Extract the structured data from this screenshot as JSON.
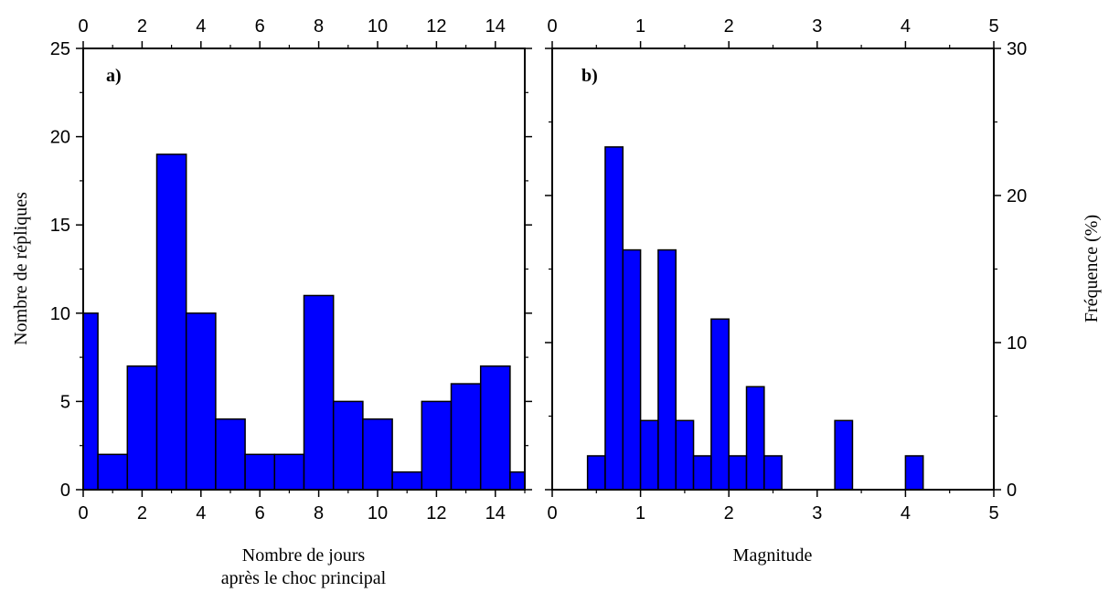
{
  "chart_data": [
    {
      "type": "bar",
      "panel_label": "a)",
      "xlabel": [
        "Nombre de jours",
        "après le choc principal"
      ],
      "ylabel": "Nombre de répliques",
      "xlim": [
        0,
        15
      ],
      "ylim": [
        0,
        25
      ],
      "xticks": [
        "0",
        "2",
        "4",
        "6",
        "8",
        "10",
        "12",
        "14"
      ],
      "yticks": [
        "0",
        "5",
        "10",
        "15",
        "20",
        "25"
      ],
      "bin_width": 1,
      "bins": [
        {
          "x0": 0.0,
          "x1": 0.5,
          "value": 10
        },
        {
          "x0": 0.5,
          "x1": 1.5,
          "value": 2
        },
        {
          "x0": 1.5,
          "x1": 2.5,
          "value": 7
        },
        {
          "x0": 2.5,
          "x1": 3.5,
          "value": 19
        },
        {
          "x0": 3.5,
          "x1": 4.5,
          "value": 10
        },
        {
          "x0": 4.5,
          "x1": 5.5,
          "value": 4
        },
        {
          "x0": 5.5,
          "x1": 6.5,
          "value": 2
        },
        {
          "x0": 6.5,
          "x1": 7.5,
          "value": 2
        },
        {
          "x0": 7.5,
          "x1": 8.5,
          "value": 11
        },
        {
          "x0": 8.5,
          "x1": 9.5,
          "value": 5
        },
        {
          "x0": 9.5,
          "x1": 10.5,
          "value": 4
        },
        {
          "x0": 10.5,
          "x1": 11.5,
          "value": 1
        },
        {
          "x0": 11.5,
          "x1": 12.5,
          "value": 5
        },
        {
          "x0": 12.5,
          "x1": 13.5,
          "value": 6
        },
        {
          "x0": 13.5,
          "x1": 14.5,
          "value": 7
        },
        {
          "x0": 14.5,
          "x1": 15.0,
          "value": 1
        }
      ],
      "bar_color": "#0000ff"
    },
    {
      "type": "bar",
      "panel_label": "b)",
      "xlabel": "Magnitude",
      "ylabel": "Fréquence (%)",
      "ylabel_side": "right",
      "xlim": [
        0,
        5
      ],
      "ylim": [
        0,
        30
      ],
      "xticks": [
        "0",
        "1",
        "2",
        "3",
        "4",
        "5"
      ],
      "yticks": [
        "0",
        "10",
        "20",
        "30"
      ],
      "bins": [
        {
          "x0": 0.4,
          "x1": 0.6,
          "value": 2.3
        },
        {
          "x0": 0.6,
          "x1": 0.8,
          "value": 23.3
        },
        {
          "x0": 0.8,
          "x1": 1.0,
          "value": 16.3
        },
        {
          "x0": 1.0,
          "x1": 1.2,
          "value": 4.7
        },
        {
          "x0": 1.2,
          "x1": 1.4,
          "value": 16.3
        },
        {
          "x0": 1.4,
          "x1": 1.6,
          "value": 4.7
        },
        {
          "x0": 1.6,
          "x1": 1.8,
          "value": 2.3
        },
        {
          "x0": 1.8,
          "x1": 2.0,
          "value": 11.6
        },
        {
          "x0": 2.0,
          "x1": 2.2,
          "value": 2.3
        },
        {
          "x0": 2.2,
          "x1": 2.4,
          "value": 7.0
        },
        {
          "x0": 2.4,
          "x1": 2.6,
          "value": 2.3
        },
        {
          "x0": 3.2,
          "x1": 3.4,
          "value": 4.7
        },
        {
          "x0": 4.0,
          "x1": 4.2,
          "value": 2.3
        }
      ],
      "bar_color": "#0000ff"
    }
  ]
}
